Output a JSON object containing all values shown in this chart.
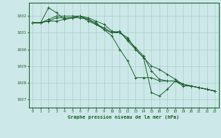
{
  "title": "Graphe pression niveau de la mer (hPa)",
  "background_color": "#cce8e8",
  "plot_bg_color": "#cce8e8",
  "grid_color": "#aacccc",
  "line_color": "#1a5c2a",
  "ylim": [
    1026.5,
    1032.8
  ],
  "xlim": [
    -0.5,
    23.5
  ],
  "yticks": [
    1027,
    1028,
    1029,
    1030,
    1031,
    1032
  ],
  "xticks": [
    0,
    1,
    2,
    3,
    4,
    5,
    6,
    7,
    8,
    9,
    10,
    11,
    12,
    13,
    14,
    15,
    16,
    17,
    18,
    19,
    20,
    21,
    22,
    23
  ],
  "series": [
    [
      1031.6,
      1031.6,
      1032.5,
      1032.2,
      1031.8,
      1031.9,
      1032.0,
      1031.7,
      1031.5,
      1031.3,
      1031.0,
      1031.1,
      1030.5,
      1030.0,
      1029.5,
      1027.4,
      1027.2,
      1027.6,
      1028.1,
      1027.8,
      1027.8,
      1027.7,
      1027.6,
      1027.5
    ],
    [
      1031.6,
      1031.6,
      1031.7,
      1031.7,
      1031.8,
      1031.9,
      1032.0,
      1031.8,
      1031.6,
      1031.2,
      1031.0,
      1031.0,
      1030.7,
      1030.0,
      1029.5,
      1029.0,
      1028.8,
      1028.5,
      1028.2,
      1027.9,
      1027.8,
      1027.7,
      1027.6,
      1027.5
    ],
    [
      1031.6,
      1031.6,
      1031.8,
      1032.0,
      1032.0,
      1032.0,
      1032.0,
      1031.9,
      1031.7,
      1031.5,
      1031.1,
      1031.0,
      1030.6,
      1030.1,
      1029.6,
      1028.7,
      1028.2,
      1028.1,
      1028.1,
      1027.9,
      1027.8,
      1027.7,
      1027.6,
      1027.5
    ],
    [
      1031.6,
      1031.6,
      1031.7,
      1031.9,
      1031.9,
      1031.9,
      1031.9,
      1031.8,
      1031.5,
      1031.2,
      1030.8,
      1030.0,
      1029.3,
      1028.3,
      1028.3,
      1028.3,
      1028.1,
      1028.1,
      1028.1,
      1027.9,
      1027.8,
      1027.7,
      1027.6,
      1027.5
    ]
  ]
}
